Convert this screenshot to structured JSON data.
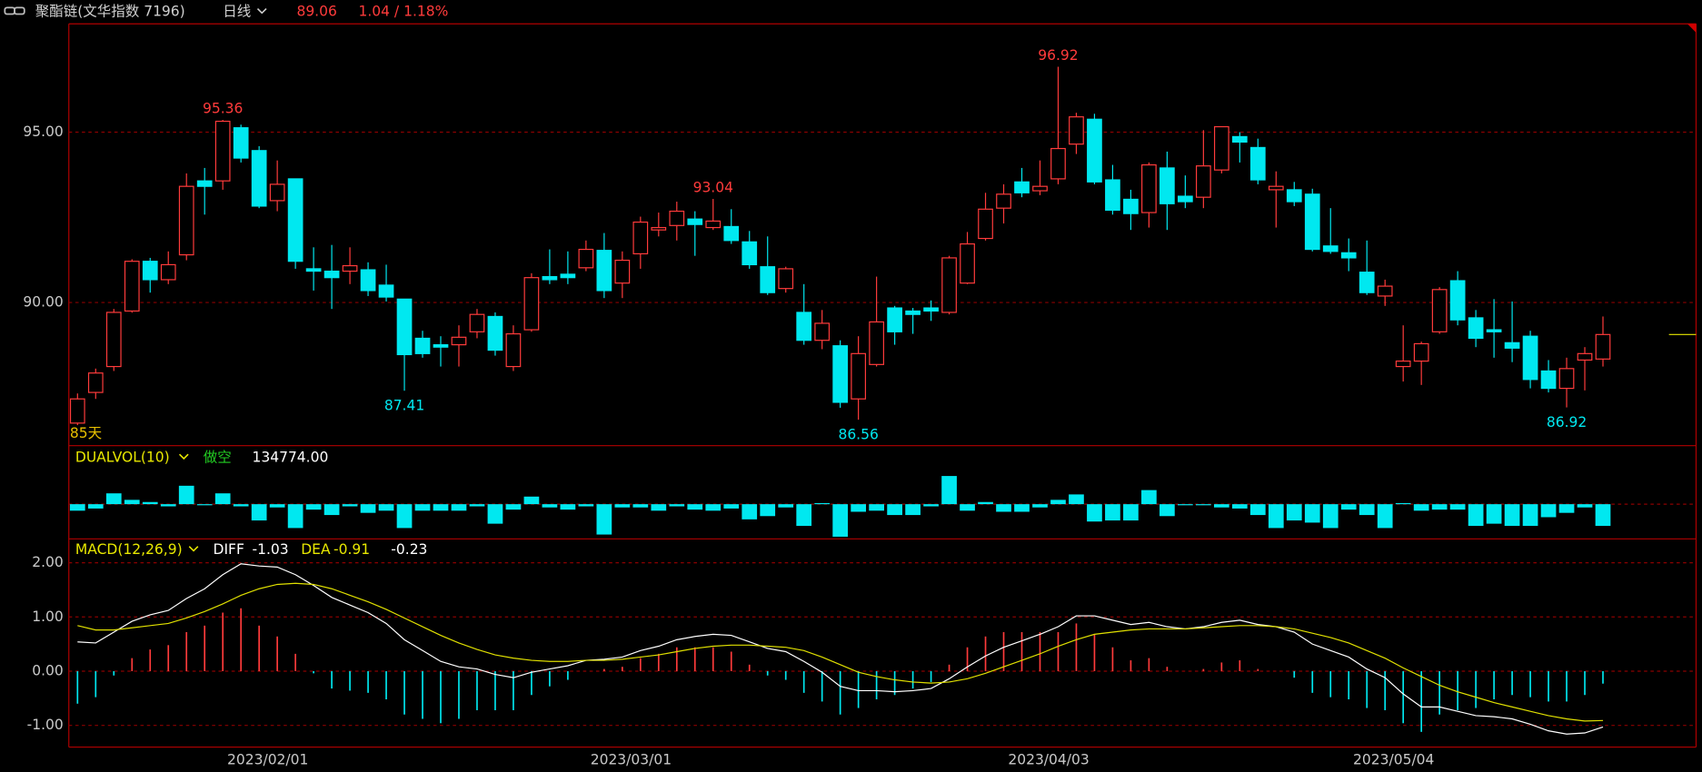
{
  "header": {
    "symbol": "聚酯链(文华指数 7196)",
    "period": "日线",
    "price": 89.06,
    "change": "1.04 / 1.18%"
  },
  "chart_data": [
    {
      "type": "candlestick",
      "open": [
        86.46,
        87.36,
        88.12,
        89.75,
        91.21,
        90.67,
        91.4,
        93.57,
        93.57,
        95.13,
        94.46,
        92.99,
        93.63,
        90.99,
        90.92,
        90.92,
        90.96,
        90.51,
        90.1,
        88.95,
        88.76,
        88.76,
        89.14,
        89.59,
        88.12,
        89.2,
        90.76,
        90.83,
        91.02,
        91.53,
        90.57,
        91.43,
        92.13,
        92.26,
        92.45,
        92.2,
        92.23,
        91.78,
        91.05,
        90.41,
        89.71,
        88.89,
        88.73,
        87.17,
        88.18,
        89.84,
        89.75,
        89.84,
        89.71,
        90.57,
        91.88,
        92.77,
        93.54,
        93.28,
        93.63,
        94.65,
        95.38,
        93.6,
        93.03,
        92.64,
        93.95,
        93.12,
        93.09,
        93.89,
        94.87,
        94.55,
        93.31,
        93.31,
        93.18,
        91.66,
        91.46,
        90.89,
        90.19,
        88.12,
        88.28,
        89.14,
        90.64,
        89.55,
        89.2,
        88.82,
        89.01,
        87.99,
        87.48,
        88.31,
        88.34
      ],
      "high": [
        87.33,
        88.06,
        89.81,
        91.27,
        91.31,
        91.5,
        93.79,
        93.95,
        95.36,
        95.22,
        94.59,
        94.17,
        93.63,
        91.62,
        91.69,
        91.62,
        91.18,
        91.11,
        90.1,
        89.17,
        89.01,
        89.33,
        89.81,
        89.71,
        89.33,
        90.86,
        91.56,
        91.5,
        91.82,
        92.04,
        91.5,
        92.52,
        92.64,
        92.96,
        92.68,
        93.04,
        92.74,
        92.1,
        91.94,
        91.05,
        90.54,
        89.78,
        88.89,
        89.01,
        90.76,
        89.9,
        89.84,
        90.06,
        91.37,
        92.07,
        93.22,
        93.47,
        93.95,
        94.17,
        96.92,
        95.57,
        95.54,
        94.04,
        93.31,
        94.11,
        94.43,
        93.73,
        95.06,
        95.16,
        95.0,
        94.81,
        93.85,
        93.54,
        93.34,
        92.77,
        91.88,
        91.82,
        90.67,
        89.33,
        88.85,
        90.45,
        90.92,
        89.78,
        90.1,
        90.03,
        89.17,
        88.31,
        88.38,
        88.69,
        89.59
      ],
      "low": [
        86.4,
        87.17,
        87.99,
        89.7,
        90.29,
        90.54,
        91.24,
        92.58,
        93.31,
        94.11,
        92.77,
        92.68,
        90.99,
        90.35,
        89.81,
        90.54,
        90.19,
        90.03,
        87.41,
        88.38,
        88.12,
        88.12,
        88.95,
        88.44,
        87.99,
        89.14,
        90.54,
        90.54,
        90.92,
        90.13,
        90.13,
        90.99,
        91.94,
        91.82,
        91.37,
        92.13,
        91.72,
        90.99,
        90.22,
        90.29,
        88.76,
        88.63,
        86.91,
        86.56,
        88.12,
        88.76,
        89.08,
        89.46,
        89.65,
        90.54,
        91.82,
        92.32,
        93.09,
        93.15,
        93.47,
        94.36,
        93.47,
        92.58,
        92.13,
        92.2,
        92.13,
        92.77,
        92.77,
        93.79,
        94.11,
        93.47,
        92.2,
        92.83,
        91.5,
        91.43,
        90.92,
        90.22,
        89.9,
        87.68,
        87.58,
        89.08,
        89.33,
        88.69,
        88.38,
        88.25,
        87.48,
        87.36,
        86.92,
        87.42,
        88.12
      ],
      "close": [
        87.17,
        87.93,
        89.71,
        91.21,
        90.67,
        91.11,
        93.41,
        93.41,
        95.32,
        94.24,
        92.83,
        93.47,
        91.21,
        90.92,
        90.73,
        91.08,
        90.35,
        90.16,
        88.47,
        88.5,
        88.69,
        88.98,
        89.65,
        88.6,
        89.08,
        90.73,
        90.67,
        90.73,
        91.56,
        90.35,
        91.24,
        92.36,
        92.2,
        92.68,
        92.29,
        92.39,
        91.82,
        91.11,
        90.29,
        90.99,
        88.89,
        89.39,
        87.07,
        88.5,
        89.43,
        89.14,
        89.65,
        89.75,
        91.31,
        91.72,
        92.74,
        93.18,
        93.22,
        93.41,
        94.52,
        95.45,
        93.54,
        92.71,
        92.61,
        94.04,
        92.9,
        92.96,
        94.01,
        95.16,
        94.71,
        93.6,
        93.41,
        92.96,
        91.56,
        91.5,
        91.31,
        90.29,
        90.48,
        88.28,
        88.79,
        90.38,
        89.49,
        88.95,
        89.14,
        88.66,
        87.74,
        87.48,
        88.06,
        88.5,
        89.06
      ],
      "ylim": [
        85.83,
        98.18
      ],
      "yticks": [
        {
          "value": 90,
          "label": "90.00"
        },
        {
          "value": 95,
          "label": "95.00"
        }
      ],
      "grid": true,
      "up_color": "#ff3b3b",
      "down_color": "#00e8f0",
      "marked_highs": [
        8,
        35,
        54
      ],
      "marked_lows": [
        18,
        43,
        82
      ],
      "count_label": "85天"
    },
    {
      "type": "bar",
      "title": "DUALVOL(10)",
      "signal": "做空",
      "reading": "134774.00",
      "values": [
        -6,
        -4,
        10,
        4,
        2,
        -2,
        17,
        -1,
        10,
        -2,
        -15,
        -3,
        -22,
        -5,
        -10,
        -2,
        -8,
        -6,
        -22,
        -6,
        -6,
        -6,
        -2,
        -18,
        -5,
        7,
        -3,
        -5,
        -2,
        -28,
        -3,
        -3,
        -6,
        -2,
        -5,
        -6,
        -4,
        -14,
        -11,
        -3,
        -20,
        1,
        -30,
        -7,
        -6,
        -10,
        -10,
        -2,
        26,
        -6,
        2,
        -7,
        -7,
        -3,
        4,
        9,
        -16,
        -15,
        -15,
        13,
        -11,
        -1,
        -1,
        -3,
        -4,
        -10,
        -22,
        -15,
        -17,
        -22,
        -5,
        -10,
        -22,
        1,
        -6,
        -5,
        -5,
        -20,
        -18,
        -20,
        -20,
        -12,
        -8,
        -3,
        -20
      ],
      "ylim": [
        -31,
        53
      ],
      "color": "#00e8f0"
    },
    {
      "type": "macd",
      "title": "MACD(12,26,9)",
      "categories": [
        null,
        null,
        null,
        null,
        null,
        null,
        null,
        null,
        null,
        null,
        "2023/02/01",
        null,
        null,
        null,
        null,
        null,
        null,
        null,
        null,
        null,
        null,
        null,
        null,
        null,
        null,
        null,
        null,
        null,
        null,
        null,
        "2023/03/01",
        null,
        null,
        null,
        null,
        null,
        null,
        null,
        null,
        null,
        null,
        null,
        null,
        null,
        null,
        null,
        null,
        null,
        null,
        null,
        null,
        null,
        null,
        "2023/04/03",
        null,
        null,
        null,
        null,
        null,
        null,
        null,
        null,
        null,
        null,
        null,
        null,
        null,
        null,
        null,
        null,
        null,
        null,
        "2023/05/04",
        null,
        null,
        null,
        null,
        null,
        null,
        null,
        null,
        null,
        null,
        null,
        null
      ],
      "series": [
        {
          "name": "DIFF",
          "color": "#ffffff",
          "values": [
            0.54,
            0.52,
            0.72,
            0.92,
            1.04,
            1.12,
            1.34,
            1.52,
            1.78,
            1.98,
            1.94,
            1.92,
            1.78,
            1.58,
            1.36,
            1.22,
            1.08,
            0.88,
            0.58,
            0.38,
            0.18,
            0.08,
            0.04,
            -0.06,
            -0.12,
            -0.02,
            0.04,
            0.1,
            0.2,
            0.22,
            0.26,
            0.38,
            0.46,
            0.58,
            0.64,
            0.68,
            0.66,
            0.54,
            0.42,
            0.36,
            0.18,
            -0.02,
            -0.28,
            -0.36,
            -0.36,
            -0.38,
            -0.36,
            -0.32,
            -0.14,
            0.08,
            0.28,
            0.44,
            0.56,
            0.68,
            0.82,
            1.02,
            1.02,
            0.94,
            0.86,
            0.9,
            0.82,
            0.78,
            0.82,
            0.9,
            0.94,
            0.86,
            0.82,
            0.72,
            0.5,
            0.38,
            0.26,
            0.04,
            -0.12,
            -0.42,
            -0.66,
            -0.66,
            -0.74,
            -0.82,
            -0.84,
            -0.88,
            -0.98,
            -1.1,
            -1.16,
            -1.14,
            -1.03
          ]
        },
        {
          "name": "DEA",
          "color": "#e0e000",
          "values": [
            0.84,
            0.76,
            0.76,
            0.8,
            0.84,
            0.88,
            0.98,
            1.1,
            1.24,
            1.4,
            1.52,
            1.6,
            1.62,
            1.6,
            1.52,
            1.4,
            1.28,
            1.14,
            0.98,
            0.82,
            0.66,
            0.52,
            0.4,
            0.3,
            0.24,
            0.2,
            0.18,
            0.18,
            0.2,
            0.2,
            0.22,
            0.26,
            0.3,
            0.36,
            0.42,
            0.46,
            0.48,
            0.48,
            0.46,
            0.44,
            0.38,
            0.26,
            0.12,
            -0.02,
            -0.1,
            -0.16,
            -0.2,
            -0.22,
            -0.2,
            -0.14,
            -0.04,
            0.08,
            0.2,
            0.32,
            0.46,
            0.58,
            0.68,
            0.72,
            0.76,
            0.78,
            0.78,
            0.78,
            0.8,
            0.82,
            0.84,
            0.84,
            0.82,
            0.78,
            0.7,
            0.62,
            0.52,
            0.38,
            0.24,
            0.06,
            -0.1,
            -0.26,
            -0.38,
            -0.48,
            -0.58,
            -0.66,
            -0.74,
            -0.82,
            -0.88,
            -0.92,
            -0.91
          ]
        }
      ],
      "histogram": {
        "values": [
          -0.6,
          -0.48,
          -0.08,
          0.24,
          0.4,
          0.48,
          0.72,
          0.84,
          1.08,
          1.16,
          0.84,
          0.64,
          0.32,
          -0.04,
          -0.32,
          -0.36,
          -0.4,
          -0.52,
          -0.8,
          -0.88,
          -0.96,
          -0.88,
          -0.72,
          -0.72,
          -0.72,
          -0.44,
          -0.28,
          -0.16,
          0.0,
          0.04,
          0.08,
          0.24,
          0.32,
          0.44,
          0.44,
          0.44,
          0.36,
          0.12,
          -0.08,
          -0.16,
          -0.4,
          -0.56,
          -0.8,
          -0.68,
          -0.52,
          -0.44,
          -0.32,
          -0.2,
          0.12,
          0.44,
          0.64,
          0.72,
          0.72,
          0.72,
          0.72,
          0.88,
          0.68,
          0.44,
          0.2,
          0.24,
          0.08,
          0.0,
          0.04,
          0.16,
          0.2,
          0.04,
          0.0,
          -0.12,
          -0.4,
          -0.48,
          -0.52,
          -0.68,
          -0.72,
          -0.96,
          -1.12,
          -0.8,
          -0.72,
          -0.68,
          -0.52,
          -0.44,
          -0.48,
          -0.56,
          -0.56,
          -0.44,
          -0.23
        ],
        "up_color": "#ff3b3b",
        "down_color": "#00e8f0"
      },
      "ylim": [
        -1.38,
        2.42
      ],
      "yticks": [
        {
          "value": -1,
          "label": "-1.00"
        },
        {
          "value": 0,
          "label": "0.00"
        },
        {
          "value": 1,
          "label": "1.00"
        },
        {
          "value": 2,
          "label": "2.00"
        }
      ],
      "grid": true
    }
  ]
}
